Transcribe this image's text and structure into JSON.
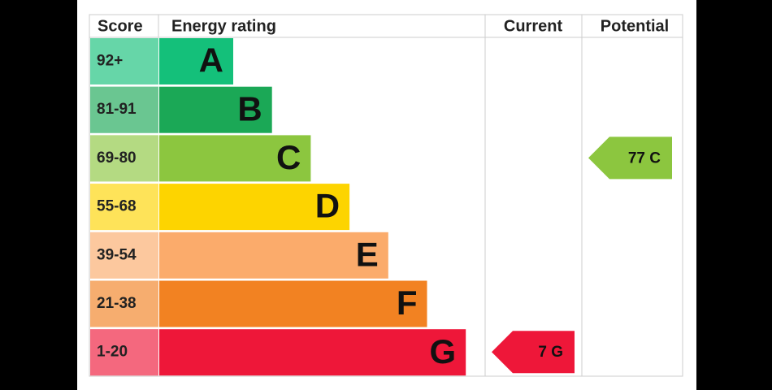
{
  "headers": [
    "Score",
    "Energy rating",
    "Current",
    "Potential"
  ],
  "bands": [
    {
      "score": "92+",
      "letter": "A",
      "color": "#14c07a"
    },
    {
      "score": "81-91",
      "letter": "B",
      "color": "#1ba856"
    },
    {
      "score": "69-80",
      "letter": "C",
      "color": "#8cc63f"
    },
    {
      "score": "55-68",
      "letter": "D",
      "color": "#fdd400"
    },
    {
      "score": "39-54",
      "letter": "E",
      "color": "#fbab6b"
    },
    {
      "score": "21-38",
      "letter": "F",
      "color": "#f28222"
    },
    {
      "score": "1-20",
      "letter": "G",
      "color": "#ee1739"
    }
  ],
  "current": {
    "label": "7 G",
    "band": 6
  },
  "potential": {
    "label": "77 C",
    "band": 2
  }
}
